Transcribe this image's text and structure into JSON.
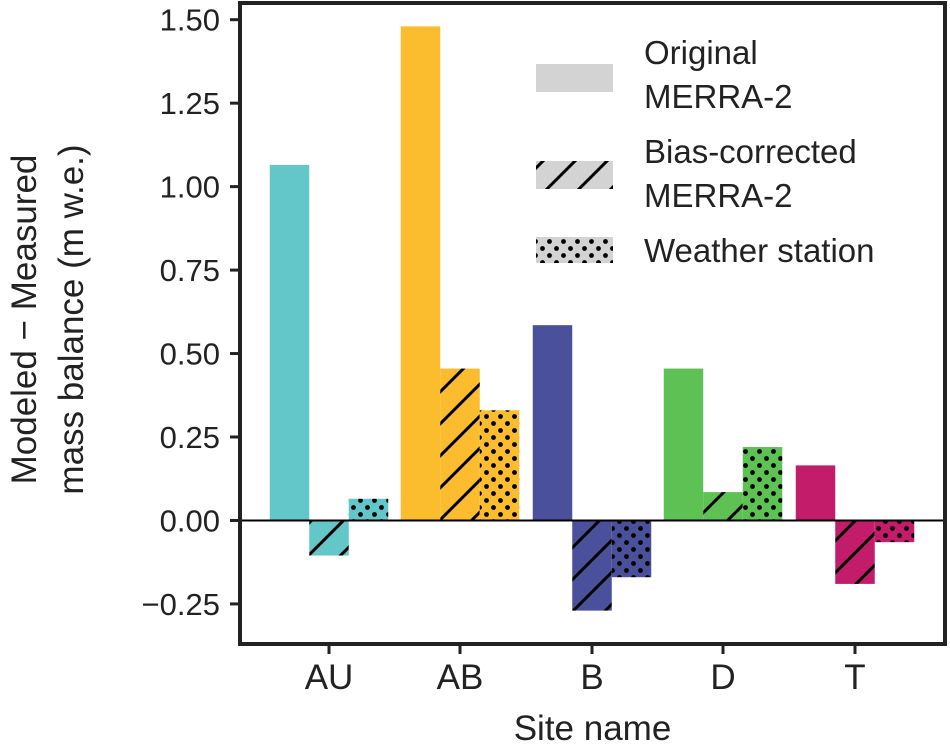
{
  "chart_data": {
    "type": "bar",
    "categories": [
      "AU",
      "AB",
      "B",
      "D",
      "T"
    ],
    "category_colors": [
      "#63c6c8",
      "#fbbd2d",
      "#4a519a",
      "#5ec153",
      "#c21c6b"
    ],
    "series": [
      {
        "name": "Original MERRA-2",
        "pattern": "solid",
        "values": [
          1.065,
          1.48,
          0.585,
          0.455,
          0.165
        ]
      },
      {
        "name": "Bias-corrected MERRA-2",
        "pattern": "hatch",
        "values": [
          -0.105,
          0.455,
          -0.27,
          0.085,
          -0.19
        ]
      },
      {
        "name": "Weather station",
        "pattern": "dots",
        "values": [
          0.065,
          0.33,
          -0.17,
          0.22,
          -0.065
        ]
      }
    ],
    "legend": [
      {
        "lines": [
          "Original",
          "MERRA-2"
        ]
      },
      {
        "lines": [
          "Bias-corrected",
          "MERRA-2"
        ]
      },
      {
        "lines": [
          "Weather station"
        ]
      }
    ],
    "legend_swatch_color": "#d3d3d3",
    "xlabel": "Site name",
    "ylabel_lines": [
      "Modeled − Measured",
      "mass balance (m w.e.)"
    ],
    "ylim": [
      -0.37,
      1.55
    ],
    "yticks": [
      -0.25,
      0,
      0.25,
      0.5,
      0.75,
      1.0,
      1.25,
      1.5
    ],
    "ytick_labels": [
      "−0.25",
      "0.00",
      "0.25",
      "0.50",
      "0.75",
      "1.00",
      "1.25",
      "1.50"
    ],
    "zero_line": true,
    "grid": false,
    "legend_position": "top-right"
  }
}
